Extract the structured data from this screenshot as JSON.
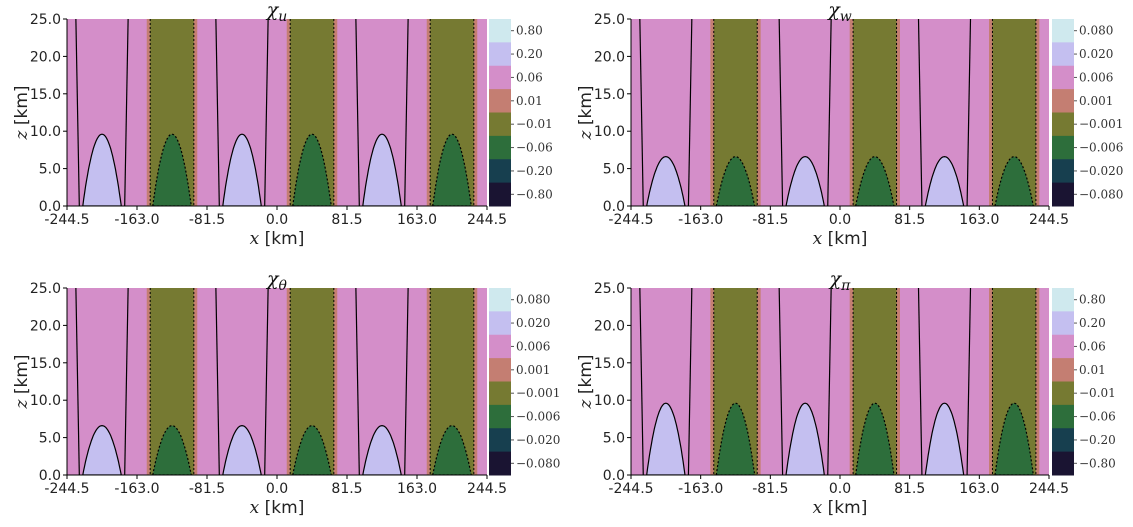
{
  "chart_data": [
    {
      "type": "contourf",
      "title_symbol": "χ",
      "title_subscript": "u",
      "xlabel_var": "x",
      "xlabel_unit": " [km]",
      "ylabel_var": "z",
      "ylabel_unit": " [km]",
      "x_ticks": [
        "-244.5",
        "-163.0",
        "-81.5",
        "0.0",
        "81.5",
        "163.0",
        "244.5"
      ],
      "y_ticks": [
        "0.0",
        "5.0",
        "10.0",
        "15.0",
        "20.0",
        "25.0"
      ],
      "xlim": [
        -244.5,
        244.5
      ],
      "ylim": [
        0,
        25
      ],
      "wavelength_km": 81.5,
      "mound_peak_km": 9.6,
      "colorbar_ticks": [
        "0.80",
        "0.20",
        "0.06",
        "0.01",
        "−0.01",
        "−0.06",
        "−0.20",
        "−0.80"
      ]
    },
    {
      "type": "contourf",
      "title_symbol": "χ",
      "title_subscript": "w",
      "xlabel_var": "x",
      "xlabel_unit": " [km]",
      "ylabel_var": "z",
      "ylabel_unit": " [km]",
      "x_ticks": [
        "-244.5",
        "-163.0",
        "-81.5",
        "0.0",
        "81.5",
        "163.0",
        "244.5"
      ],
      "y_ticks": [
        "0.0",
        "5.0",
        "10.0",
        "15.0",
        "20.0",
        "25.0"
      ],
      "xlim": [
        -244.5,
        244.5
      ],
      "ylim": [
        0,
        25
      ],
      "wavelength_km": 81.5,
      "mound_peak_km": 6.6,
      "colorbar_ticks": [
        "0.080",
        "0.020",
        "0.006",
        "0.001",
        "−0.001",
        "−0.006",
        "−0.020",
        "−0.080"
      ]
    },
    {
      "type": "contourf",
      "title_symbol": "χ",
      "title_subscript": "θ",
      "xlabel_var": "x",
      "xlabel_unit": " [km]",
      "ylabel_var": "z",
      "ylabel_unit": " [km]",
      "x_ticks": [
        "-244.5",
        "-163.0",
        "-81.5",
        "0.0",
        "81.5",
        "163.0",
        "244.5"
      ],
      "y_ticks": [
        "0.0",
        "5.0",
        "10.0",
        "15.0",
        "20.0",
        "25.0"
      ],
      "xlim": [
        -244.5,
        244.5
      ],
      "ylim": [
        0,
        25
      ],
      "wavelength_km": 81.5,
      "mound_peak_km": 6.6,
      "colorbar_ticks": [
        "0.080",
        "0.020",
        "0.006",
        "0.001",
        "−0.001",
        "−0.006",
        "−0.020",
        "−0.080"
      ]
    },
    {
      "type": "contourf",
      "title_symbol": "χ",
      "title_subscript": "π",
      "xlabel_var": "x",
      "xlabel_unit": " [km]",
      "ylabel_var": "z",
      "ylabel_unit": " [km]",
      "x_ticks": [
        "-244.5",
        "-163.0",
        "-81.5",
        "0.0",
        "81.5",
        "163.0",
        "244.5"
      ],
      "y_ticks": [
        "0.0",
        "5.0",
        "10.0",
        "15.0",
        "20.0",
        "25.0"
      ],
      "xlim": [
        -244.5,
        244.5
      ],
      "ylim": [
        0,
        25
      ],
      "wavelength_km": 81.5,
      "mound_peak_km": 9.6,
      "colorbar_ticks": [
        "0.80",
        "0.20",
        "0.06",
        "0.01",
        "−0.01",
        "−0.06",
        "−0.20",
        "−0.80"
      ]
    }
  ],
  "colors": {
    "colorbar": [
      "#cfe9ee",
      "#c4bff0",
      "#d48ec9",
      "#c47e72",
      "#767a32",
      "#2d6e3b",
      "#173f4f",
      "#1a1432"
    ],
    "pink": "#d48ec9",
    "olive": "#767a32",
    "brown": "#c47e72",
    "lavender": "#c4bff0",
    "green": "#2d6e3b"
  }
}
